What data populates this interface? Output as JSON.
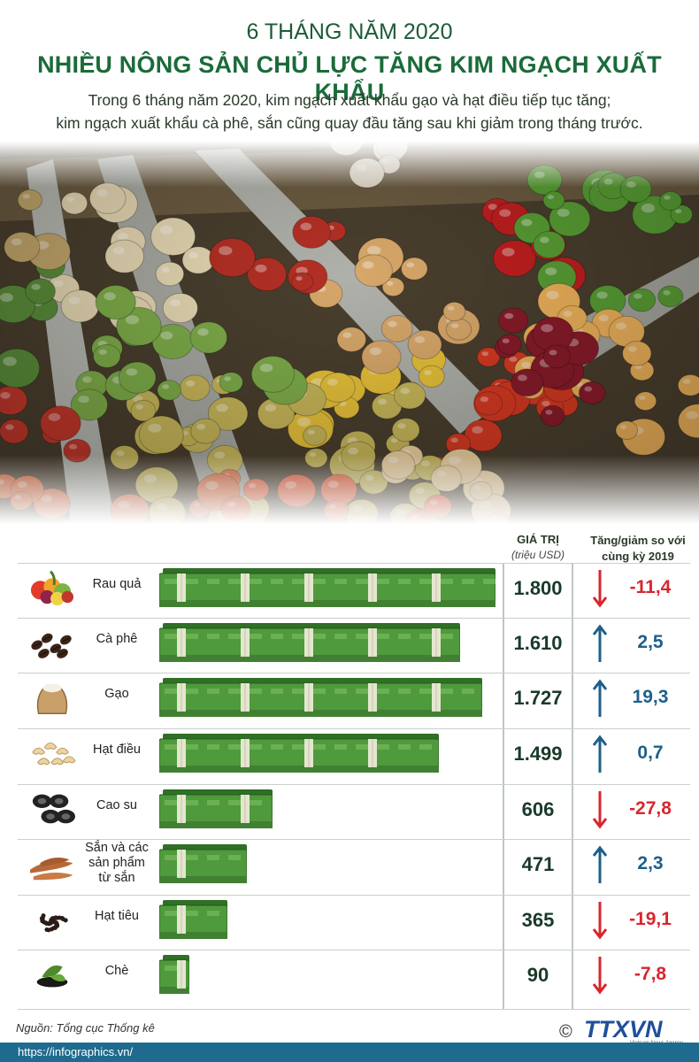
{
  "header": {
    "supertitle": "6 THÁNG NĂM 2020",
    "title": "NHIỀU NÔNG SẢN CHỦ LỰC TĂNG KIM NGẠCH XUẤT KHẨU",
    "subtitle_line1": "Trong 6 tháng năm 2020, kim ngạch xuất khẩu gạo và hạt điều tiếp tục tăng;",
    "subtitle_line2": "kim ngạch xuất khẩu cà phê, sắn cũng quay đầu tăng sau khi giảm trong tháng trước."
  },
  "columns": {
    "value_label": "GIÁ TRỊ",
    "value_unit": "(triệu USD)",
    "change_label_line1": "Tăng/giảm so với",
    "change_label_line2": "cùng kỳ 2019"
  },
  "chart_data": {
    "type": "bar",
    "orientation": "horizontal",
    "categories": [
      "Rau quả",
      "Cà phê",
      "Gạo",
      "Hạt điều",
      "Cao su",
      "Sắn và các sản phẩm từ sắn",
      "Hạt tiêu",
      "Chè"
    ],
    "values": [
      1800,
      1610,
      1727,
      1499,
      606,
      471,
      365,
      90
    ],
    "value_labels": [
      "1.800",
      "1.610",
      "1.727",
      "1.499",
      "606",
      "471",
      "365",
      "90"
    ],
    "change": [
      -11.4,
      2.5,
      19.3,
      0.7,
      -27.8,
      2.3,
      -19.1,
      -7.8
    ],
    "change_labels": [
      "-11,4",
      "2,5",
      "19,3",
      "0,7",
      "-27,8",
      "2,3",
      "-19,1",
      "-7,8"
    ],
    "colors": {
      "bar": "#4f9a3c",
      "bar_dark": "#2f6f26",
      "up": "#1f5f8a",
      "down": "#d8262e"
    }
  },
  "rows": [
    {
      "label_lines": [
        "Rau quả"
      ],
      "icon": "fruit-basket-icon"
    },
    {
      "label_lines": [
        "Cà phê"
      ],
      "icon": "coffee-beans-icon"
    },
    {
      "label_lines": [
        "Gạo"
      ],
      "icon": "rice-sack-icon"
    },
    {
      "label_lines": [
        "Hạt điều"
      ],
      "icon": "cashew-icon"
    },
    {
      "label_lines": [
        "Cao su"
      ],
      "icon": "tires-icon"
    },
    {
      "label_lines": [
        "Sắn và các",
        "sản phẩm",
        "từ sắn"
      ],
      "icon": "cassava-icon"
    },
    {
      "label_lines": [
        "Hạt tiêu"
      ],
      "icon": "pepper-icon"
    },
    {
      "label_lines": [
        "Chè"
      ],
      "icon": "tea-leaves-icon"
    }
  ],
  "source": "Nguồn: Tổng cục Thống kê",
  "logo": {
    "copyright": "©",
    "brand": "TTXVN",
    "tagline": "Vietnam News Agency"
  },
  "footer": {
    "url": "https://infographics.vn/"
  }
}
